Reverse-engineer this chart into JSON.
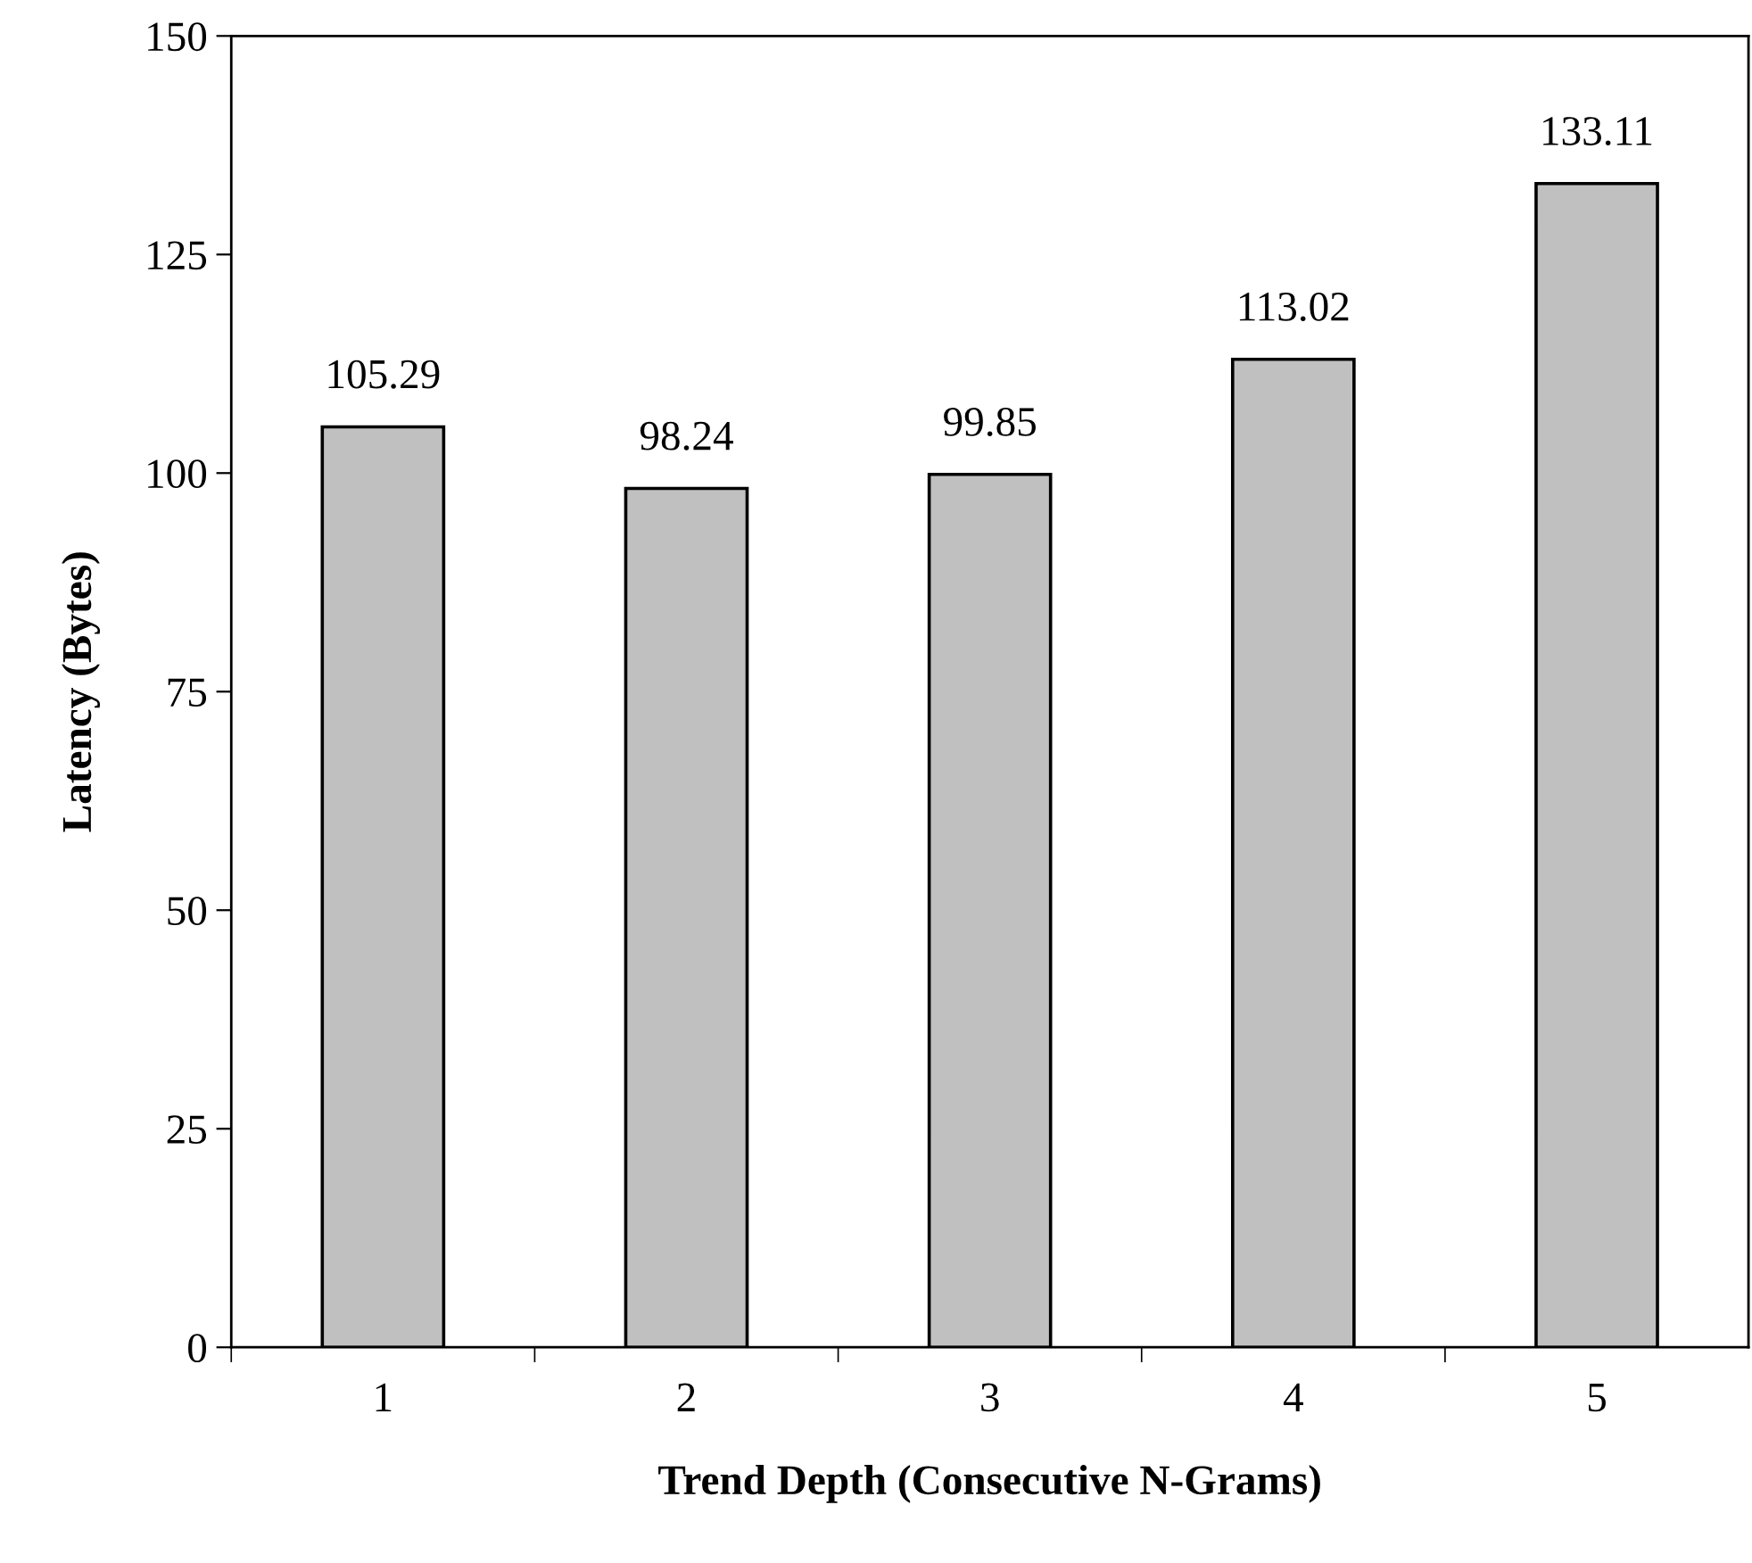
{
  "chart_data": {
    "type": "bar",
    "xlabel": "Trend Depth (Consecutive N-Grams)",
    "ylabel": "Latency (Bytes)",
    "categories": [
      "1",
      "2",
      "3",
      "4",
      "5"
    ],
    "values": [
      105.29,
      98.24,
      99.85,
      113.02,
      133.11
    ],
    "color": "#c0c0c0",
    "ylim": [
      0,
      150
    ],
    "yticks": [
      0,
      25,
      50,
      75,
      100,
      125,
      150
    ],
    "grid": false,
    "legend": false,
    "data_labels": true
  }
}
